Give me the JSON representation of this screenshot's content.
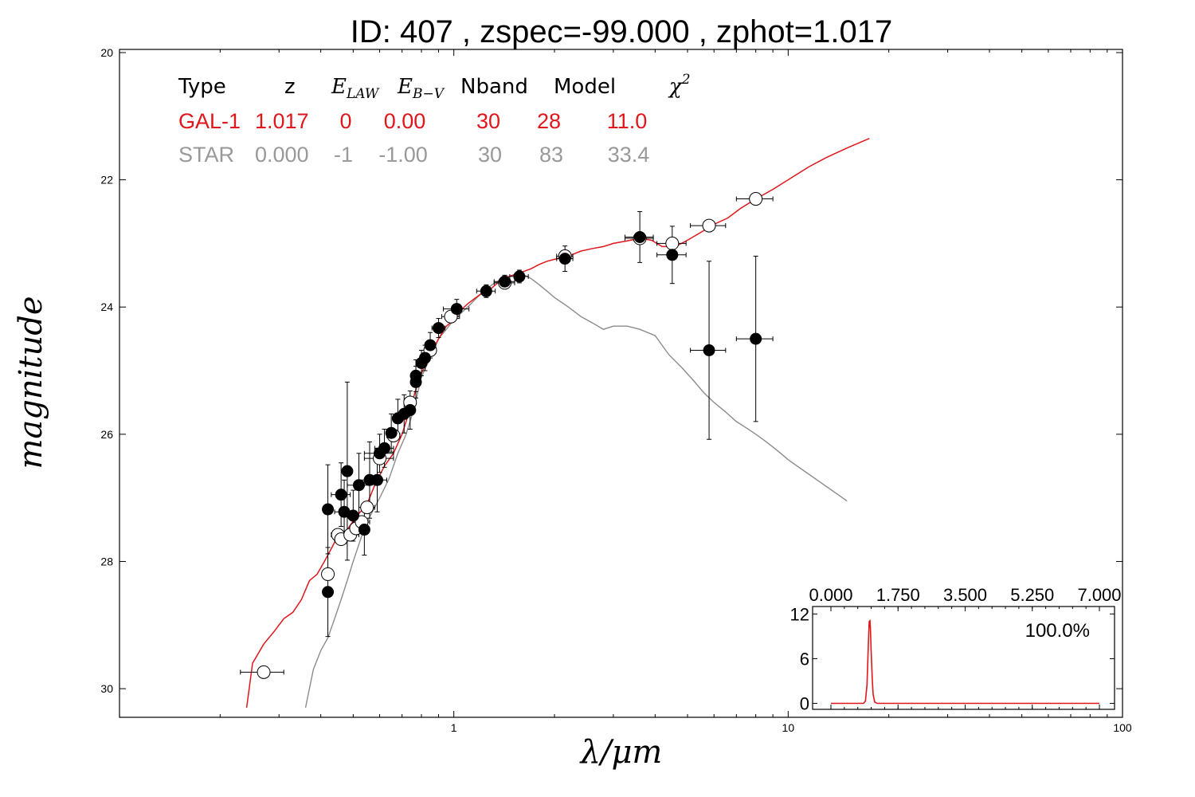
{
  "title": "ID:  407   , zspec=-99.000 , zphot=1.017",
  "xlabel": "λ/μm",
  "ylabel": "magnitude",
  "legend_table": {
    "headers": {
      "type": "Type",
      "z": "z",
      "elaw": "E",
      "elaw_sub": "LAW",
      "ebv": "E",
      "ebv_sub": "B−V",
      "nband": "Nband",
      "model": "Model",
      "chi2": "χ",
      "chi2_sup": "2"
    },
    "rows": [
      {
        "type": "GAL-1",
        "z": "1.017",
        "elaw": "0",
        "ebv": "0.00",
        "nband": "30",
        "model": "28",
        "chi2": "11.0",
        "color": "#e0161b"
      },
      {
        "type": "STAR",
        "z": "0.000",
        "elaw": "-1",
        "ebv": "-1.00",
        "nband": "30",
        "model": "83",
        "chi2": "33.4",
        "color": "#999999"
      }
    ]
  },
  "colors": {
    "galaxy": "#e0161b",
    "star": "#8c8c8c",
    "points": "#000000"
  },
  "chart_data": [
    {
      "type": "scatter",
      "xscale": "log",
      "xlim": [
        0.1,
        100
      ],
      "ylim": [
        30.45,
        19.95
      ],
      "yreversed": true,
      "xticks": [
        "1",
        "10",
        "100"
      ],
      "xtick_values": [
        1,
        10,
        100
      ],
      "yticks": [
        "20",
        "22",
        "24",
        "26",
        "28",
        "30"
      ],
      "ytick_values": [
        20,
        22,
        24,
        26,
        28,
        30
      ],
      "model_galaxy": {
        "x": [
          0.24,
          0.25,
          0.27,
          0.29,
          0.31,
          0.33,
          0.35,
          0.37,
          0.39,
          0.41,
          0.43,
          0.45,
          0.48,
          0.51,
          0.55,
          0.58,
          0.62,
          0.66,
          0.7,
          0.74,
          0.78,
          0.82,
          0.86,
          0.9,
          0.95,
          1.0,
          1.05,
          1.1,
          1.2,
          1.3,
          1.4,
          1.5,
          1.6,
          1.7,
          1.8,
          1.9,
          2.0,
          2.2,
          2.4,
          2.6,
          2.8,
          3.0,
          3.3,
          3.6,
          3.9,
          4.2,
          4.6,
          5.0,
          5.5,
          6.0,
          6.6,
          7.2,
          8.0,
          9.0,
          10,
          11.5,
          13,
          15,
          17.5
        ],
        "y": [
          30.3,
          29.6,
          29.3,
          29.1,
          28.9,
          28.8,
          28.6,
          28.3,
          28.2,
          28.0,
          27.8,
          27.6,
          27.5,
          27.3,
          27.1,
          26.8,
          26.5,
          26.3,
          26.0,
          25.6,
          25.2,
          24.9,
          24.7,
          24.5,
          24.3,
          24.2,
          24.05,
          23.95,
          23.8,
          23.7,
          23.55,
          23.5,
          23.45,
          23.4,
          23.33,
          23.28,
          23.25,
          23.2,
          23.12,
          23.08,
          23.05,
          23.0,
          22.96,
          22.92,
          22.95,
          23.05,
          23.05,
          22.95,
          22.82,
          22.7,
          22.6,
          22.45,
          22.3,
          22.15,
          22.0,
          21.8,
          21.65,
          21.5,
          21.35
        ]
      },
      "model_star": {
        "x": [
          0.36,
          0.38,
          0.4,
          0.42,
          0.44,
          0.46,
          0.48,
          0.5,
          0.53,
          0.56,
          0.6,
          0.64,
          0.68,
          0.72,
          0.76,
          0.8,
          0.85,
          0.9,
          0.95,
          1.0,
          1.1,
          1.2,
          1.3,
          1.4,
          1.5,
          1.6,
          1.7,
          1.8,
          1.9,
          2.0,
          2.2,
          2.4,
          2.6,
          2.8,
          3.0,
          3.3,
          3.6,
          4.0,
          4.4,
          4.8,
          5.2,
          5.6,
          6.0,
          6.5,
          7.0,
          7.5,
          8.0,
          8.5,
          9.0,
          9.5,
          10,
          15
        ],
        "y": [
          30.3,
          29.7,
          29.4,
          29.2,
          28.9,
          28.6,
          28.3,
          28.0,
          27.6,
          27.3,
          27.0,
          26.7,
          26.3,
          26.0,
          25.6,
          25.1,
          24.8,
          24.5,
          24.35,
          24.2,
          24.0,
          23.8,
          23.65,
          23.55,
          23.5,
          23.48,
          23.55,
          23.65,
          23.75,
          23.85,
          24.0,
          24.15,
          24.25,
          24.35,
          24.3,
          24.3,
          24.35,
          24.45,
          24.75,
          24.95,
          25.15,
          25.35,
          25.5,
          25.65,
          25.8,
          25.9,
          26.0,
          26.1,
          26.2,
          26.3,
          26.4,
          27.05
        ]
      },
      "phot_observed": [
        {
          "x": 0.42,
          "y": 27.18,
          "xerr": 0.01,
          "yerr": 0.7
        },
        {
          "x": 0.42,
          "y": 28.48,
          "xerr": 0.01,
          "yerr": 0.7
        },
        {
          "x": 0.46,
          "y": 26.95,
          "xerr": 0.03,
          "yerr": 0.5
        },
        {
          "x": 0.47,
          "y": 27.22,
          "xerr": 0.03,
          "yerr": 0.5
        },
        {
          "x": 0.48,
          "y": 26.58,
          "xerr": 0.01,
          "yerr": 1.4
        },
        {
          "x": 0.5,
          "y": 27.28,
          "xerr": 0.02,
          "yerr": 0.4
        },
        {
          "x": 0.52,
          "y": 26.8,
          "xerr": 0.04,
          "yerr": 0.5
        },
        {
          "x": 0.54,
          "y": 27.5,
          "xerr": 0.02,
          "yerr": 0.4
        },
        {
          "x": 0.56,
          "y": 26.72,
          "xerr": 0.04,
          "yerr": 0.6
        },
        {
          "x": 0.59,
          "y": 26.72,
          "xerr": 0.04,
          "yerr": 0.5
        },
        {
          "x": 0.6,
          "y": 26.3,
          "xerr": 0.06,
          "yerr": 0.3
        },
        {
          "x": 0.62,
          "y": 26.22,
          "xerr": 0.04,
          "yerr": 0.3
        },
        {
          "x": 0.65,
          "y": 25.98,
          "xerr": 0.02,
          "yerr": 0.3
        },
        {
          "x": 0.68,
          "y": 25.75,
          "xerr": 0.02,
          "yerr": 0.3
        },
        {
          "x": 0.71,
          "y": 25.68,
          "xerr": 0.03,
          "yerr": 0.3
        },
        {
          "x": 0.74,
          "y": 25.62,
          "xerr": 0.02,
          "yerr": 0.3
        },
        {
          "x": 0.77,
          "y": 25.08,
          "xerr": 0.02,
          "yerr": 0.25
        },
        {
          "x": 0.77,
          "y": 25.18,
          "xerr": 0.02,
          "yerr": 0.25
        },
        {
          "x": 0.8,
          "y": 24.88,
          "xerr": 0.02,
          "yerr": 0.2
        },
        {
          "x": 0.82,
          "y": 24.8,
          "xerr": 0.02,
          "yerr": 0.2
        },
        {
          "x": 0.85,
          "y": 24.6,
          "xerr": 0.02,
          "yerr": 0.2
        },
        {
          "x": 0.9,
          "y": 24.33,
          "xerr": 0.04,
          "yerr": 0.15
        },
        {
          "x": 1.02,
          "y": 24.03,
          "xerr": 0.09,
          "yerr": 0.15
        },
        {
          "x": 1.25,
          "y": 23.75,
          "xerr": 0.08,
          "yerr": 0.1
        },
        {
          "x": 1.42,
          "y": 23.6,
          "xerr": 0.1,
          "yerr": 0.1
        },
        {
          "x": 1.57,
          "y": 23.52,
          "xerr": 0.1,
          "yerr": 0.1
        },
        {
          "x": 2.15,
          "y": 23.24,
          "xerr": 0.12,
          "yerr": 0.2
        },
        {
          "x": 3.6,
          "y": 22.9,
          "xerr": 0.35,
          "yerr": 0.4
        },
        {
          "x": 4.5,
          "y": 23.18,
          "xerr": 0.45,
          "yerr": 0.45
        },
        {
          "x": 5.8,
          "y": 24.68,
          "xerr": 0.7,
          "yerr": 1.4
        },
        {
          "x": 8.0,
          "y": 24.5,
          "xerr": 1.0,
          "yerr": 1.3
        }
      ],
      "phot_model": [
        {
          "x": 0.27,
          "y": 29.74,
          "xerr": 0.04
        },
        {
          "x": 0.42,
          "y": 28.2,
          "xerr": 0.01
        },
        {
          "x": 0.45,
          "y": 27.58,
          "xerr": 0.02
        },
        {
          "x": 0.46,
          "y": 27.65,
          "xerr": 0.02
        },
        {
          "x": 0.49,
          "y": 27.58,
          "xerr": 0.03
        },
        {
          "x": 0.51,
          "y": 27.48,
          "xerr": 0.02
        },
        {
          "x": 0.53,
          "y": 27.38,
          "xerr": 0.03
        },
        {
          "x": 0.55,
          "y": 27.15,
          "xerr": 0.03
        },
        {
          "x": 0.6,
          "y": 26.38,
          "xerr": 0.06
        },
        {
          "x": 0.66,
          "y": 26.02,
          "xerr": 0.03
        },
        {
          "x": 0.74,
          "y": 25.5,
          "xerr": 0.03
        },
        {
          "x": 0.85,
          "y": 24.68,
          "xerr": 0.02
        },
        {
          "x": 0.98,
          "y": 24.15,
          "xerr": 0.06
        },
        {
          "x": 1.42,
          "y": 23.62,
          "xerr": 0.1
        },
        {
          "x": 2.15,
          "y": 23.2,
          "xerr": 0.12
        },
        {
          "x": 3.6,
          "y": 22.92,
          "xerr": 0.35
        },
        {
          "x": 4.5,
          "y": 23.0,
          "xerr": 0.45
        },
        {
          "x": 5.8,
          "y": 22.72,
          "xerr": 0.7
        },
        {
          "x": 8.0,
          "y": 22.3,
          "xerr": 1.0
        }
      ]
    },
    {
      "type": "line",
      "name": "zphot PDF inset",
      "xlim": [
        0,
        7
      ],
      "ylim": [
        -0.8,
        13
      ],
      "xticks": [
        "0.000",
        "1.750",
        "3.500",
        "5.250",
        "7.000"
      ],
      "yticks": [
        "0",
        "6",
        "12"
      ],
      "peak_label": "100.0%",
      "x": [
        0.0,
        0.6,
        0.85,
        0.9,
        0.94,
        0.97,
        0.99,
        1.0,
        1.017,
        1.03,
        1.05,
        1.08,
        1.1,
        1.14,
        1.2,
        1.4,
        7.0
      ],
      "y": [
        0,
        0,
        0,
        0.3,
        2.5,
        7.0,
        10.0,
        11.0,
        11.1,
        10.0,
        7.0,
        3.0,
        1.2,
        0.2,
        0,
        0,
        0
      ]
    }
  ]
}
